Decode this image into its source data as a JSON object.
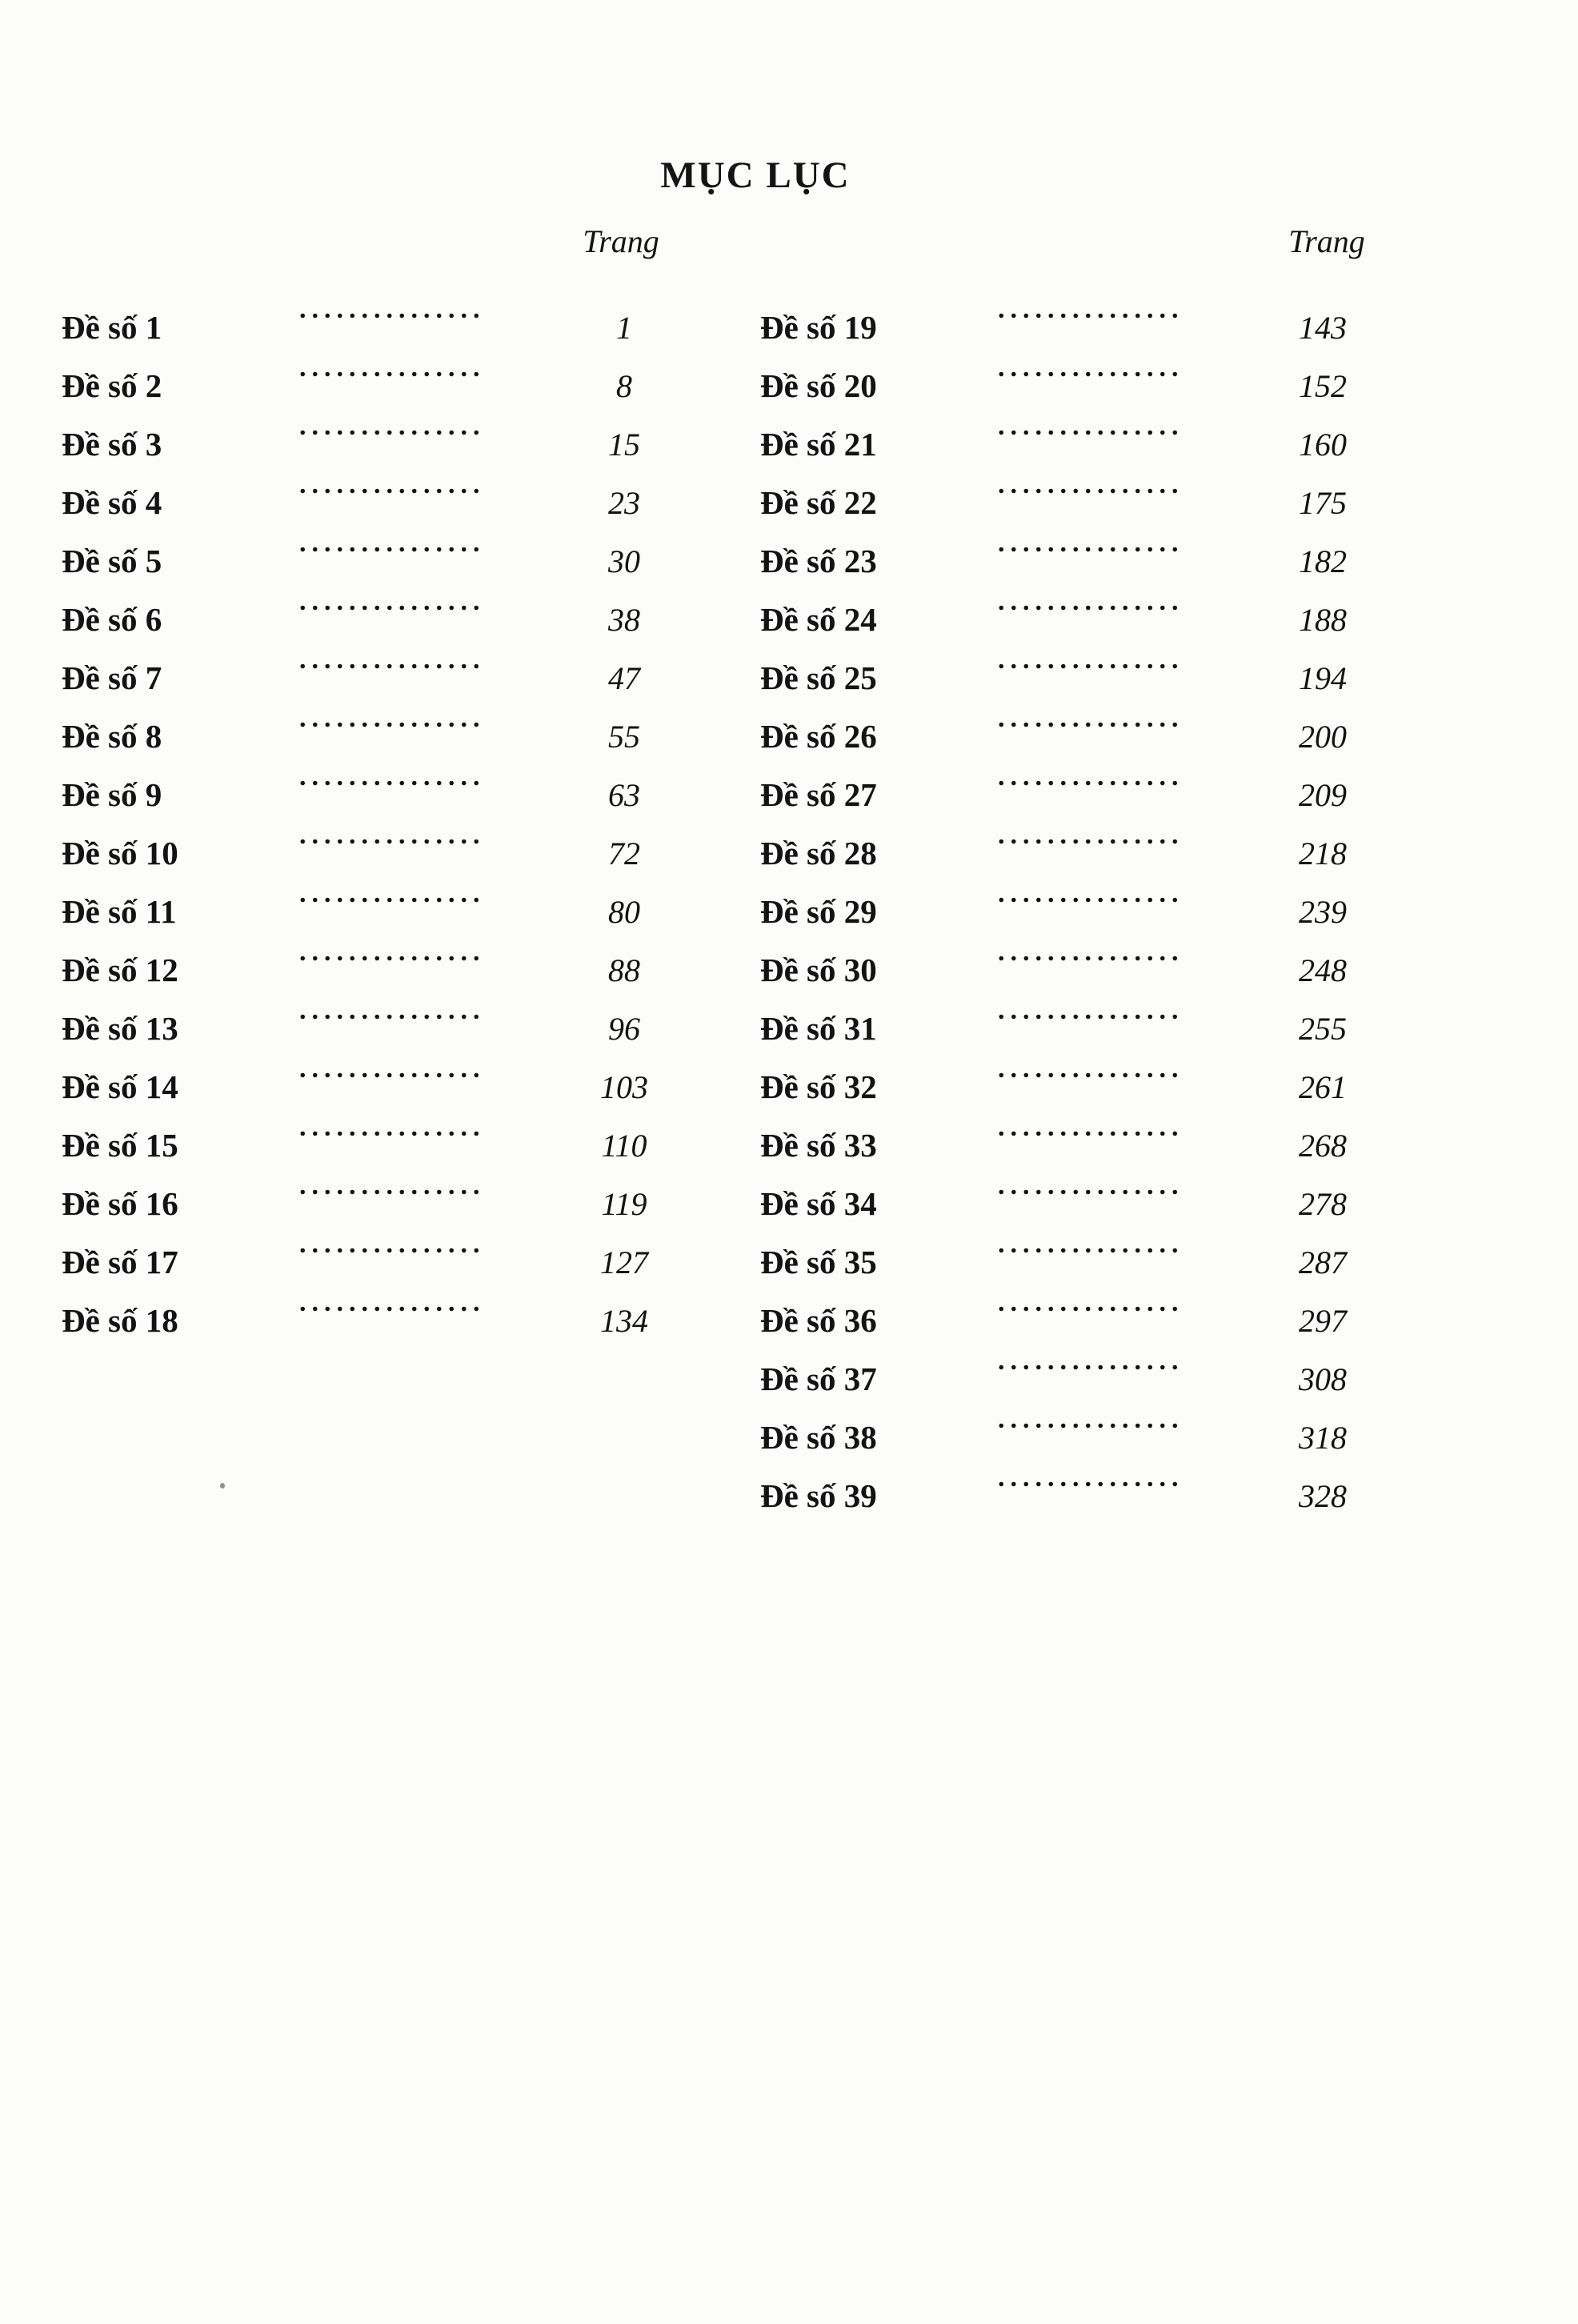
{
  "page": {
    "title": "MỤC LỤC",
    "trang_header": "Trang",
    "leader": "..............."
  },
  "toc": {
    "left": [
      {
        "label": "Đề số 1",
        "page": "1"
      },
      {
        "label": "Đề số 2",
        "page": "8"
      },
      {
        "label": "Đề số 3",
        "page": "15"
      },
      {
        "label": "Đề số 4",
        "page": "23"
      },
      {
        "label": "Đề số 5",
        "page": "30"
      },
      {
        "label": "Đề số 6",
        "page": "38"
      },
      {
        "label": "Đề số 7",
        "page": "47"
      },
      {
        "label": "Đề số 8",
        "page": "55"
      },
      {
        "label": "Đề số 9",
        "page": "63"
      },
      {
        "label": "Đề số 10",
        "page": "72"
      },
      {
        "label": "Đề số 11",
        "page": "80"
      },
      {
        "label": "Đề số 12",
        "page": "88"
      },
      {
        "label": "Đề số 13",
        "page": "96"
      },
      {
        "label": "Đề số 14",
        "page": "103"
      },
      {
        "label": "Đề số 15",
        "page": "110"
      },
      {
        "label": "Đề số 16",
        "page": "119"
      },
      {
        "label": "Đề số 17",
        "page": "127"
      },
      {
        "label": "Đề số 18",
        "page": "134"
      }
    ],
    "right": [
      {
        "label": "Đề số 19",
        "page": "143"
      },
      {
        "label": "Đề số 20",
        "page": "152"
      },
      {
        "label": "Đề số 21",
        "page": "160"
      },
      {
        "label": "Đề số 22",
        "page": "175"
      },
      {
        "label": "Đề số 23",
        "page": "182"
      },
      {
        "label": "Đề số 24",
        "page": "188"
      },
      {
        "label": "Đề số 25",
        "page": "194"
      },
      {
        "label": "Đề số 26",
        "page": "200"
      },
      {
        "label": "Đề số 27",
        "page": "209"
      },
      {
        "label": "Đề số 28",
        "page": "218"
      },
      {
        "label": "Đề số 29",
        "page": "239"
      },
      {
        "label": "Đề số 30",
        "page": "248"
      },
      {
        "label": "Đề số 31",
        "page": "255"
      },
      {
        "label": "Đề số 32",
        "page": "261"
      },
      {
        "label": "Đề số 33",
        "page": "268"
      },
      {
        "label": "Đề số 34",
        "page": "278"
      },
      {
        "label": "Đề số 35",
        "page": "287"
      },
      {
        "label": "Đề số 36",
        "page": "297"
      },
      {
        "label": "Đề số 37",
        "page": "308"
      },
      {
        "label": "Đề số 38",
        "page": "318"
      },
      {
        "label": "Đề số 39",
        "page": "328"
      }
    ]
  }
}
